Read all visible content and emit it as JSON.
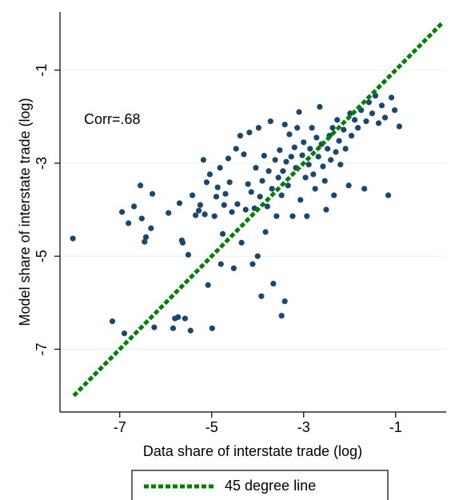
{
  "chart_data": {
    "type": "scatter",
    "xlabel": "Data share of interstate trade (log)",
    "ylabel": "Model share of interstate trade (log)",
    "annotation": "Corr=.68",
    "xlim": [
      -8.3,
      0.1
    ],
    "ylim": [
      -8.35,
      0.25
    ],
    "xticks": [
      -7,
      -5,
      -3,
      -1
    ],
    "yticks": [
      -7,
      -5,
      -3,
      -1
    ],
    "grid": true,
    "legend": "bottom",
    "points": {
      "color": "#1a476f",
      "x": [
        -8.02,
        -7.16,
        -6.9,
        -6.95,
        -6.81,
        -6.69,
        -6.55,
        -6.52,
        -6.46,
        -6.43,
        -6.32,
        -6.29,
        -6.25,
        -5.94,
        -5.84,
        -5.8,
        -5.73,
        -5.7,
        -5.65,
        -5.63,
        -5.58,
        -5.51,
        -5.46,
        -5.42,
        -5.35,
        -5.28,
        -5.25,
        -5.18,
        -5.15,
        -5.11,
        -5.08,
        -5.04,
        -4.99,
        -4.94,
        -4.9,
        -4.87,
        -4.82,
        -4.8,
        -4.76,
        -4.73,
        -4.7,
        -4.64,
        -4.61,
        -4.56,
        -4.52,
        -4.47,
        -4.44,
        -4.38,
        -4.35,
        -4.3,
        -4.26,
        -4.21,
        -4.18,
        -4.14,
        -4.11,
        -4.07,
        -4.04,
        -4.0,
        -3.98,
        -3.95,
        -3.92,
        -3.9,
        -3.86,
        -3.83,
        -3.79,
        -3.76,
        -3.72,
        -3.69,
        -3.66,
        -3.62,
        -3.59,
        -3.55,
        -3.52,
        -3.48,
        -3.45,
        -3.41,
        -3.38,
        -3.34,
        -3.31,
        -3.27,
        -3.24,
        -3.2,
        -3.17,
        -3.14,
        -3.1,
        -3.07,
        -3.03,
        -3.0,
        -2.96,
        -2.93,
        -2.89,
        -2.86,
        -2.82,
        -2.79,
        -2.75,
        -2.72,
        -2.68,
        -2.65,
        -2.61,
        -2.58,
        -2.54,
        -2.51,
        -2.48,
        -2.44,
        -2.41,
        -2.37,
        -2.34,
        -2.3,
        -2.27,
        -2.23,
        -2.2,
        -2.13,
        -2.09,
        -2.02,
        -1.99,
        -1.96,
        -1.89,
        -1.82,
        -1.75,
        -1.68,
        -1.64,
        -1.58,
        -1.51,
        -1.44,
        -1.37,
        -1.3,
        -1.23,
        -1.16,
        -1.09,
        -1.02,
        -0.92,
        -3.48,
        -3.41
      ],
      "y": [
        -4.62,
        -6.4,
        -6.66,
        -4.05,
        -4.29,
        -3.93,
        -3.48,
        -4.19,
        -4.69,
        -4.59,
        -4.4,
        -3.66,
        -6.53,
        -4.07,
        -6.55,
        -6.34,
        -6.31,
        -3.86,
        -4.66,
        -4.71,
        -6.34,
        -4.97,
        -6.6,
        -3.69,
        -4.12,
        -4.02,
        -3.9,
        -2.93,
        -4.1,
        -3.41,
        -5.62,
        -3.24,
        -6.55,
        -4.14,
        -3.72,
        -3.52,
        -3.1,
        -5.17,
        -4.52,
        -3.9,
        -3.66,
        -2.9,
        -3.41,
        -4.05,
        -5.26,
        -2.69,
        -3.88,
        -2.41,
        -4.71,
        -2.81,
        -4.0,
        -3.45,
        -2.34,
        -3.62,
        -5.17,
        -3.97,
        -3.1,
        -5.0,
        -2.24,
        -3.72,
        -5.86,
        -3.38,
        -2.84,
        -4.48,
        -3.93,
        -3.17,
        -2.1,
        -3.55,
        -5.59,
        -2.93,
        -4.14,
        -3.31,
        -2.72,
        -3.69,
        -3.17,
        -2.17,
        -2.97,
        -3.48,
        -2.38,
        -2.86,
        -4.14,
        -2.66,
        -3.1,
        -2.24,
        -1.9,
        -3.79,
        -2.83,
        -2.55,
        -3.31,
        -4.14,
        -3.03,
        -2.69,
        -2.24,
        -3.24,
        -3.55,
        -2.45,
        -2.86,
        -1.79,
        -2.59,
        -3.07,
        -3.38,
        -4.0,
        -2.69,
        -2.41,
        -2.93,
        -2.24,
        -3.69,
        -2.76,
        -2.07,
        -2.52,
        -3.03,
        -2.28,
        -2.69,
        -3.48,
        -1.93,
        -2.41,
        -2.07,
        -2.24,
        -1.86,
        -3.55,
        -2.1,
        -1.69,
        -1.93,
        -1.55,
        -2.14,
        -1.76,
        -2.02,
        -3.69,
        -1.59,
        -1.86,
        -2.21,
        -6.28,
        -5.97
      ]
    },
    "line": {
      "name": "45 degree line",
      "color": "#008000",
      "x": [
        -8,
        0
      ],
      "values": [
        -8,
        0
      ]
    }
  }
}
